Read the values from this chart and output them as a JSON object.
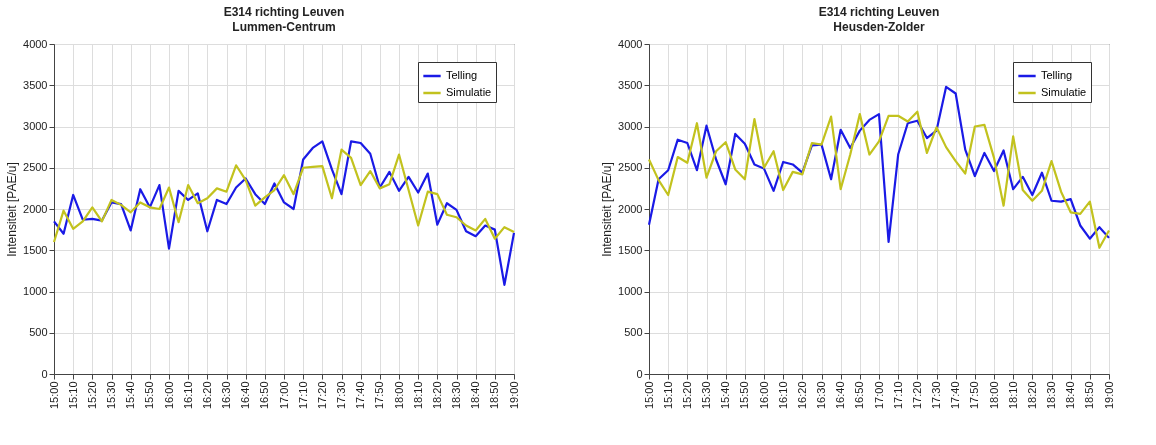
{
  "chart_data": [
    {
      "type": "line",
      "title": "E314 richting Leuven",
      "subtitle": "Lummen-Centrum",
      "ylabel": "Intensiteit [PAE/u]",
      "x": [
        15,
        15.0833,
        15.1667,
        15.25,
        15.3333,
        15.4167,
        15.5,
        15.5833,
        15.6667,
        15.75,
        15.8333,
        15.9167,
        16,
        16.0833,
        16.1667,
        16.25,
        16.3333,
        16.4167,
        16.5,
        16.5833,
        16.6667,
        16.75,
        16.8333,
        16.9167,
        17,
        17.0833,
        17.1667,
        17.25,
        17.3333,
        17.4167,
        17.5,
        17.5833,
        17.6667,
        17.75,
        17.8333,
        17.9167,
        18,
        18.0833,
        18.1667,
        18.25,
        18.3333,
        18.4167,
        18.5,
        18.5833,
        18.6667,
        18.75,
        18.8333,
        18.9167,
        19
      ],
      "series": [
        {
          "name": "Telling",
          "color": "#1a1ae6",
          "values": [
            1850,
            1700,
            2170,
            1870,
            1880,
            1860,
            2080,
            2060,
            1740,
            2240,
            2020,
            2290,
            1520,
            2220,
            2110,
            2190,
            1730,
            2110,
            2060,
            2260,
            2370,
            2180,
            2060,
            2310,
            2080,
            2000,
            2600,
            2740,
            2820,
            2480,
            2180,
            2820,
            2800,
            2670,
            2260,
            2450,
            2220,
            2390,
            2200,
            2430,
            1810,
            2070,
            1990,
            1730,
            1670,
            1800,
            1750,
            1080,
            1710
          ]
        },
        {
          "name": "Simulatie",
          "color": "#c2c21e",
          "values": [
            1600,
            1980,
            1760,
            1850,
            2020,
            1850,
            2110,
            2050,
            1960,
            2080,
            2020,
            2000,
            2260,
            1840,
            2290,
            2070,
            2130,
            2250,
            2210,
            2530,
            2350,
            2040,
            2140,
            2230,
            2410,
            2180,
            2500,
            2510,
            2520,
            2130,
            2720,
            2620,
            2290,
            2460,
            2250,
            2300,
            2660,
            2230,
            1800,
            2210,
            2180,
            1930,
            1900,
            1800,
            1740,
            1880,
            1640,
            1780,
            1720
          ]
        }
      ],
      "xlim": [
        15,
        19
      ],
      "xticks": [
        {
          "value": 15,
          "label": "15:00"
        },
        {
          "value": 15.1667,
          "label": "15:10"
        },
        {
          "value": 15.3333,
          "label": "15:20"
        },
        {
          "value": 15.5,
          "label": "15:30"
        },
        {
          "value": 15.6667,
          "label": "15:40"
        },
        {
          "value": 15.8333,
          "label": "15:50"
        },
        {
          "value": 16,
          "label": "16:00"
        },
        {
          "value": 16.1667,
          "label": "16:10"
        },
        {
          "value": 16.3333,
          "label": "16:20"
        },
        {
          "value": 16.5,
          "label": "16:30"
        },
        {
          "value": 16.6667,
          "label": "16:40"
        },
        {
          "value": 16.8333,
          "label": "16:50"
        },
        {
          "value": 17,
          "label": "17:00"
        },
        {
          "value": 17.1667,
          "label": "17:10"
        },
        {
          "value": 17.3333,
          "label": "17:20"
        },
        {
          "value": 17.5,
          "label": "17:30"
        },
        {
          "value": 17.6667,
          "label": "17:40"
        },
        {
          "value": 17.8333,
          "label": "17:50"
        },
        {
          "value": 18,
          "label": "18:00"
        },
        {
          "value": 18.1667,
          "label": "18:10"
        },
        {
          "value": 18.3333,
          "label": "18:20"
        },
        {
          "value": 18.5,
          "label": "18:30"
        },
        {
          "value": 18.6667,
          "label": "18:40"
        },
        {
          "value": 18.8333,
          "label": "18:50"
        },
        {
          "value": 19,
          "label": "19:00"
        }
      ],
      "ylim": [
        0,
        4000
      ],
      "yticks": [
        0,
        500,
        1000,
        1500,
        2000,
        2500,
        3000,
        3500,
        4000
      ],
      "grid": true,
      "legend": "top right",
      "marker": "none",
      "line_style": "solid"
    },
    {
      "type": "line",
      "title": "E314 richting Leuven",
      "subtitle": "Heusden-Zolder",
      "ylabel": "Intensiteit [PAE/u]",
      "x": [
        15,
        15.0833,
        15.1667,
        15.25,
        15.3333,
        15.4167,
        15.5,
        15.5833,
        15.6667,
        15.75,
        15.8333,
        15.9167,
        16,
        16.0833,
        16.1667,
        16.25,
        16.3333,
        16.4167,
        16.5,
        16.5833,
        16.6667,
        16.75,
        16.8333,
        16.9167,
        17,
        17.0833,
        17.1667,
        17.25,
        17.3333,
        17.4167,
        17.5,
        17.5833,
        17.6667,
        17.75,
        17.8333,
        17.9167,
        18,
        18.0833,
        18.1667,
        18.25,
        18.3333,
        18.4167,
        18.5,
        18.5833,
        18.6667,
        18.75,
        18.8333,
        18.9167,
        19
      ],
      "series": [
        {
          "name": "Telling",
          "color": "#1a1ae6",
          "values": [
            1810,
            2360,
            2470,
            2840,
            2800,
            2470,
            3010,
            2600,
            2300,
            2910,
            2790,
            2540,
            2490,
            2220,
            2570,
            2540,
            2440,
            2770,
            2780,
            2360,
            2960,
            2740,
            2950,
            3080,
            3150,
            1600,
            2660,
            3040,
            3070,
            2860,
            2950,
            3480,
            3400,
            2720,
            2400,
            2680,
            2460,
            2710,
            2240,
            2390,
            2170,
            2440,
            2100,
            2090,
            2120,
            1800,
            1640,
            1780,
            1650
          ]
        },
        {
          "name": "Simulatie",
          "color": "#c2c21e",
          "values": [
            2600,
            2350,
            2170,
            2630,
            2560,
            3040,
            2380,
            2700,
            2810,
            2480,
            2360,
            3090,
            2500,
            2700,
            2230,
            2450,
            2420,
            2800,
            2780,
            3120,
            2240,
            2660,
            3150,
            2660,
            2820,
            3130,
            3130,
            3060,
            3180,
            2680,
            2990,
            2750,
            2580,
            2430,
            3000,
            3020,
            2620,
            2040,
            2880,
            2230,
            2100,
            2220,
            2580,
            2210,
            1960,
            1940,
            2090,
            1530,
            1740
          ]
        }
      ],
      "xlim": [
        15,
        19
      ],
      "xticks": [
        {
          "value": 15,
          "label": "15:00"
        },
        {
          "value": 15.1667,
          "label": "15:10"
        },
        {
          "value": 15.3333,
          "label": "15:20"
        },
        {
          "value": 15.5,
          "label": "15:30"
        },
        {
          "value": 15.6667,
          "label": "15:40"
        },
        {
          "value": 15.8333,
          "label": "15:50"
        },
        {
          "value": 16,
          "label": "16:00"
        },
        {
          "value": 16.1667,
          "label": "16:10"
        },
        {
          "value": 16.3333,
          "label": "16:20"
        },
        {
          "value": 16.5,
          "label": "16:30"
        },
        {
          "value": 16.6667,
          "label": "16:40"
        },
        {
          "value": 16.8333,
          "label": "16:50"
        },
        {
          "value": 17,
          "label": "17:00"
        },
        {
          "value": 17.1667,
          "label": "17:10"
        },
        {
          "value": 17.3333,
          "label": "17:20"
        },
        {
          "value": 17.5,
          "label": "17:30"
        },
        {
          "value": 17.6667,
          "label": "17:40"
        },
        {
          "value": 17.8333,
          "label": "17:50"
        },
        {
          "value": 18,
          "label": "18:00"
        },
        {
          "value": 18.1667,
          "label": "18:10"
        },
        {
          "value": 18.3333,
          "label": "18:20"
        },
        {
          "value": 18.5,
          "label": "18:30"
        },
        {
          "value": 18.6667,
          "label": "18:40"
        },
        {
          "value": 18.8333,
          "label": "18:50"
        },
        {
          "value": 19,
          "label": "19:00"
        }
      ],
      "ylim": [
        0,
        4000
      ],
      "yticks": [
        0,
        500,
        1000,
        1500,
        2000,
        2500,
        3000,
        3500,
        4000
      ],
      "grid": true,
      "legend": "top right",
      "marker": "none",
      "line_style": "solid"
    }
  ]
}
